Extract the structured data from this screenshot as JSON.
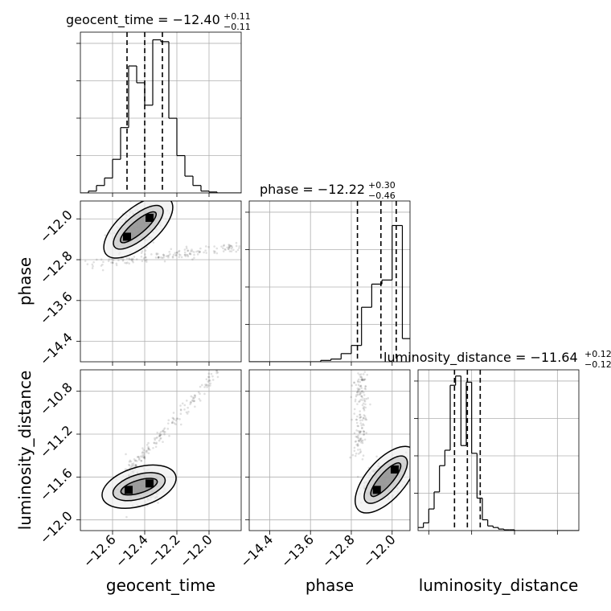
{
  "chart_data": {
    "type": "corner",
    "parameters": [
      "geocent_time",
      "phase",
      "luminosity_distance"
    ],
    "titles": [
      {
        "param": "geocent_time",
        "label": "geocent_time = −12.40",
        "plus": "+0.11",
        "minus": "−0.11"
      },
      {
        "param": "phase",
        "label": "phase = −12.22",
        "plus": "+0.30",
        "minus": "−0.46"
      },
      {
        "param": "luminosity_distance",
        "label": "luminosity_distance = −11.64",
        "plus": "+0.12",
        "minus": "−0.12"
      }
    ],
    "axes": {
      "geocent_time": {
        "range": [
          -12.8,
          -11.8
        ],
        "ticks": [
          -12.6,
          -12.4,
          -12.2,
          -12.0
        ],
        "tick_labels": [
          "−12.6",
          "−12.4",
          "−12.2",
          "−12.0"
        ]
      },
      "phase": {
        "range": [
          -14.8,
          -11.65
        ],
        "ticks": [
          -14.4,
          -13.6,
          -12.8,
          -12.0
        ],
        "tick_labels": [
          "−14.4",
          "−13.6",
          "−12.8",
          "−12.0"
        ]
      },
      "luminosity_distance": {
        "range": [
          -12.1,
          -10.6
        ],
        "ticks": [
          -12.0,
          -11.6,
          -11.2,
          -10.8
        ],
        "tick_labels": [
          "−12.0",
          "−11.6",
          "−11.2",
          "−10.8"
        ]
      }
    },
    "histograms": [
      {
        "param": "geocent_time",
        "quantiles": [
          -12.51,
          -12.4,
          -12.29
        ],
        "bins": [
          -12.8,
          -12.75,
          -12.7,
          -12.65,
          -12.6,
          -12.55,
          -12.5,
          -12.45,
          -12.4,
          -12.35,
          -12.3,
          -12.25,
          -12.2,
          -12.15,
          -12.1,
          -12.05,
          -12.0,
          -11.95,
          -11.9,
          -11.85,
          -11.8
        ],
        "counts": [
          0,
          1,
          4,
          8,
          18,
          35,
          68,
          59,
          47,
          82,
          81,
          40,
          20,
          9,
          4,
          1,
          0.5,
          0,
          0,
          0
        ]
      },
      {
        "param": "phase",
        "quantiles": [
          -12.68,
          -12.22,
          -11.92
        ],
        "bins": [
          -14.8,
          -14.6,
          -14.4,
          -14.2,
          -14.0,
          -13.8,
          -13.6,
          -13.4,
          -13.2,
          -13.0,
          -12.8,
          -12.6,
          -12.4,
          -12.2,
          -12.0,
          -11.8,
          -11.65
        ],
        "counts": [
          0,
          0,
          0,
          0,
          0,
          0,
          0,
          1,
          2,
          6,
          12,
          40,
          57,
          60,
          100,
          17
        ],
        "scale_max": 118
      },
      {
        "param": "luminosity_distance",
        "quantiles": [
          -11.76,
          -11.64,
          -11.52
        ],
        "bins": [
          -12.1,
          -12.05,
          -12.0,
          -11.95,
          -11.9,
          -11.85,
          -11.8,
          -11.75,
          -11.7,
          -11.65,
          -11.6,
          -11.55,
          -11.5,
          -11.45,
          -11.4,
          -11.35,
          -11.3,
          -11.25,
          -11.2,
          -11.15,
          -11.1,
          -11.05,
          -11.0,
          -10.95,
          -10.9,
          -10.85,
          -10.8,
          -10.75,
          -10.7,
          -10.65,
          -10.6
        ],
        "counts": [
          2,
          5,
          14,
          25,
          42,
          52,
          94,
          100,
          55,
          96,
          50,
          21,
          7,
          3,
          2,
          1,
          0.5,
          0.5,
          0,
          0,
          0,
          0,
          0,
          0,
          0,
          0,
          0,
          0,
          0,
          0
        ],
        "scale_max": 104
      }
    ],
    "contour_panels": [
      {
        "x": "geocent_time",
        "y": "phase",
        "modes": [
          {
            "x": -12.51,
            "y": -12.35
          },
          {
            "x": -12.37,
            "y": -11.98
          }
        ],
        "arm": {
          "from": [
            -12.75,
            -12.9
          ],
          "to": [
            -11.8,
            -12.55
          ]
        }
      },
      {
        "x": "geocent_time",
        "y": "luminosity_distance",
        "modes": [
          {
            "x": -12.5,
            "y": -11.72
          },
          {
            "x": -12.37,
            "y": -11.66
          }
        ],
        "arm": {
          "from": [
            -12.5,
            -11.55
          ],
          "to": [
            -11.95,
            -10.62
          ]
        }
      },
      {
        "x": "phase",
        "y": "luminosity_distance",
        "modes": [
          {
            "x": -12.3,
            "y": -11.72
          },
          {
            "x": -11.95,
            "y": -11.53
          }
        ],
        "arm": {
          "from": [
            -12.65,
            -11.4
          ],
          "to": [
            -12.6,
            -10.62
          ]
        }
      }
    ],
    "grid": true
  }
}
